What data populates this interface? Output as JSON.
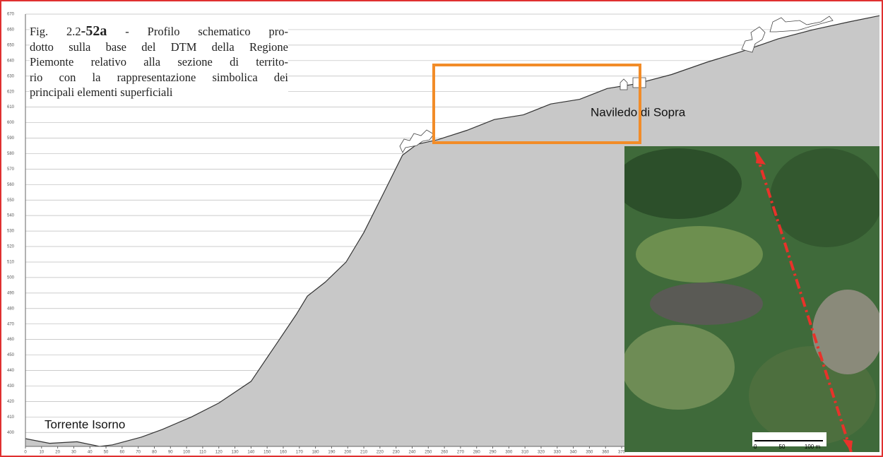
{
  "chart_data": {
    "type": "area",
    "caption": {
      "fig": "Fig. 2.2",
      "number": "-52a",
      "lines": [
        " - Profilo schematico pro-",
        "dotto sulla base del DTM della Regione",
        "Piemonte relativo alla sezione di territo-",
        "rio con la rappresentazione simbolica dei",
        "principali elementi superficiali"
      ]
    },
    "annotations": [
      "Torrente Isorno",
      "Naviledo di Sopra"
    ],
    "scale_bar": [
      "0",
      "50",
      "100 m"
    ],
    "x": [
      0,
      15,
      32,
      46,
      54,
      72,
      85,
      103,
      120,
      140,
      155,
      168,
      175,
      186,
      199,
      210,
      223,
      234,
      243,
      256,
      274,
      291,
      309,
      326,
      344,
      361,
      379,
      401,
      423,
      445,
      467,
      489,
      511,
      530
    ],
    "values": [
      396,
      393,
      394,
      391,
      392,
      397,
      402,
      410,
      419,
      433,
      456,
      476,
      488,
      497,
      510,
      529,
      556,
      579,
      586,
      589,
      595,
      602,
      605,
      612,
      615,
      622,
      625,
      631,
      639,
      646,
      654,
      660,
      665,
      669
    ],
    "color": "#c8c8c8",
    "line_color": "#333333",
    "xlim": [
      0,
      530
    ],
    "ylim": [
      391,
      670
    ],
    "xticks": [
      0,
      10,
      20,
      30,
      40,
      50,
      60,
      70,
      80,
      90,
      100,
      110,
      120,
      130,
      140,
      150,
      160,
      170,
      180,
      190,
      200,
      210,
      220,
      230,
      240,
      250,
      260,
      270,
      280,
      290,
      300,
      310,
      320,
      330,
      340,
      350,
      360,
      370
    ],
    "yticks": [
      400,
      410,
      420,
      430,
      440,
      450,
      460,
      470,
      480,
      490,
      500,
      510,
      520,
      530,
      540,
      550,
      560,
      570,
      580,
      590,
      600,
      610,
      620,
      630,
      640,
      650,
      660,
      670
    ],
    "grid": true
  }
}
